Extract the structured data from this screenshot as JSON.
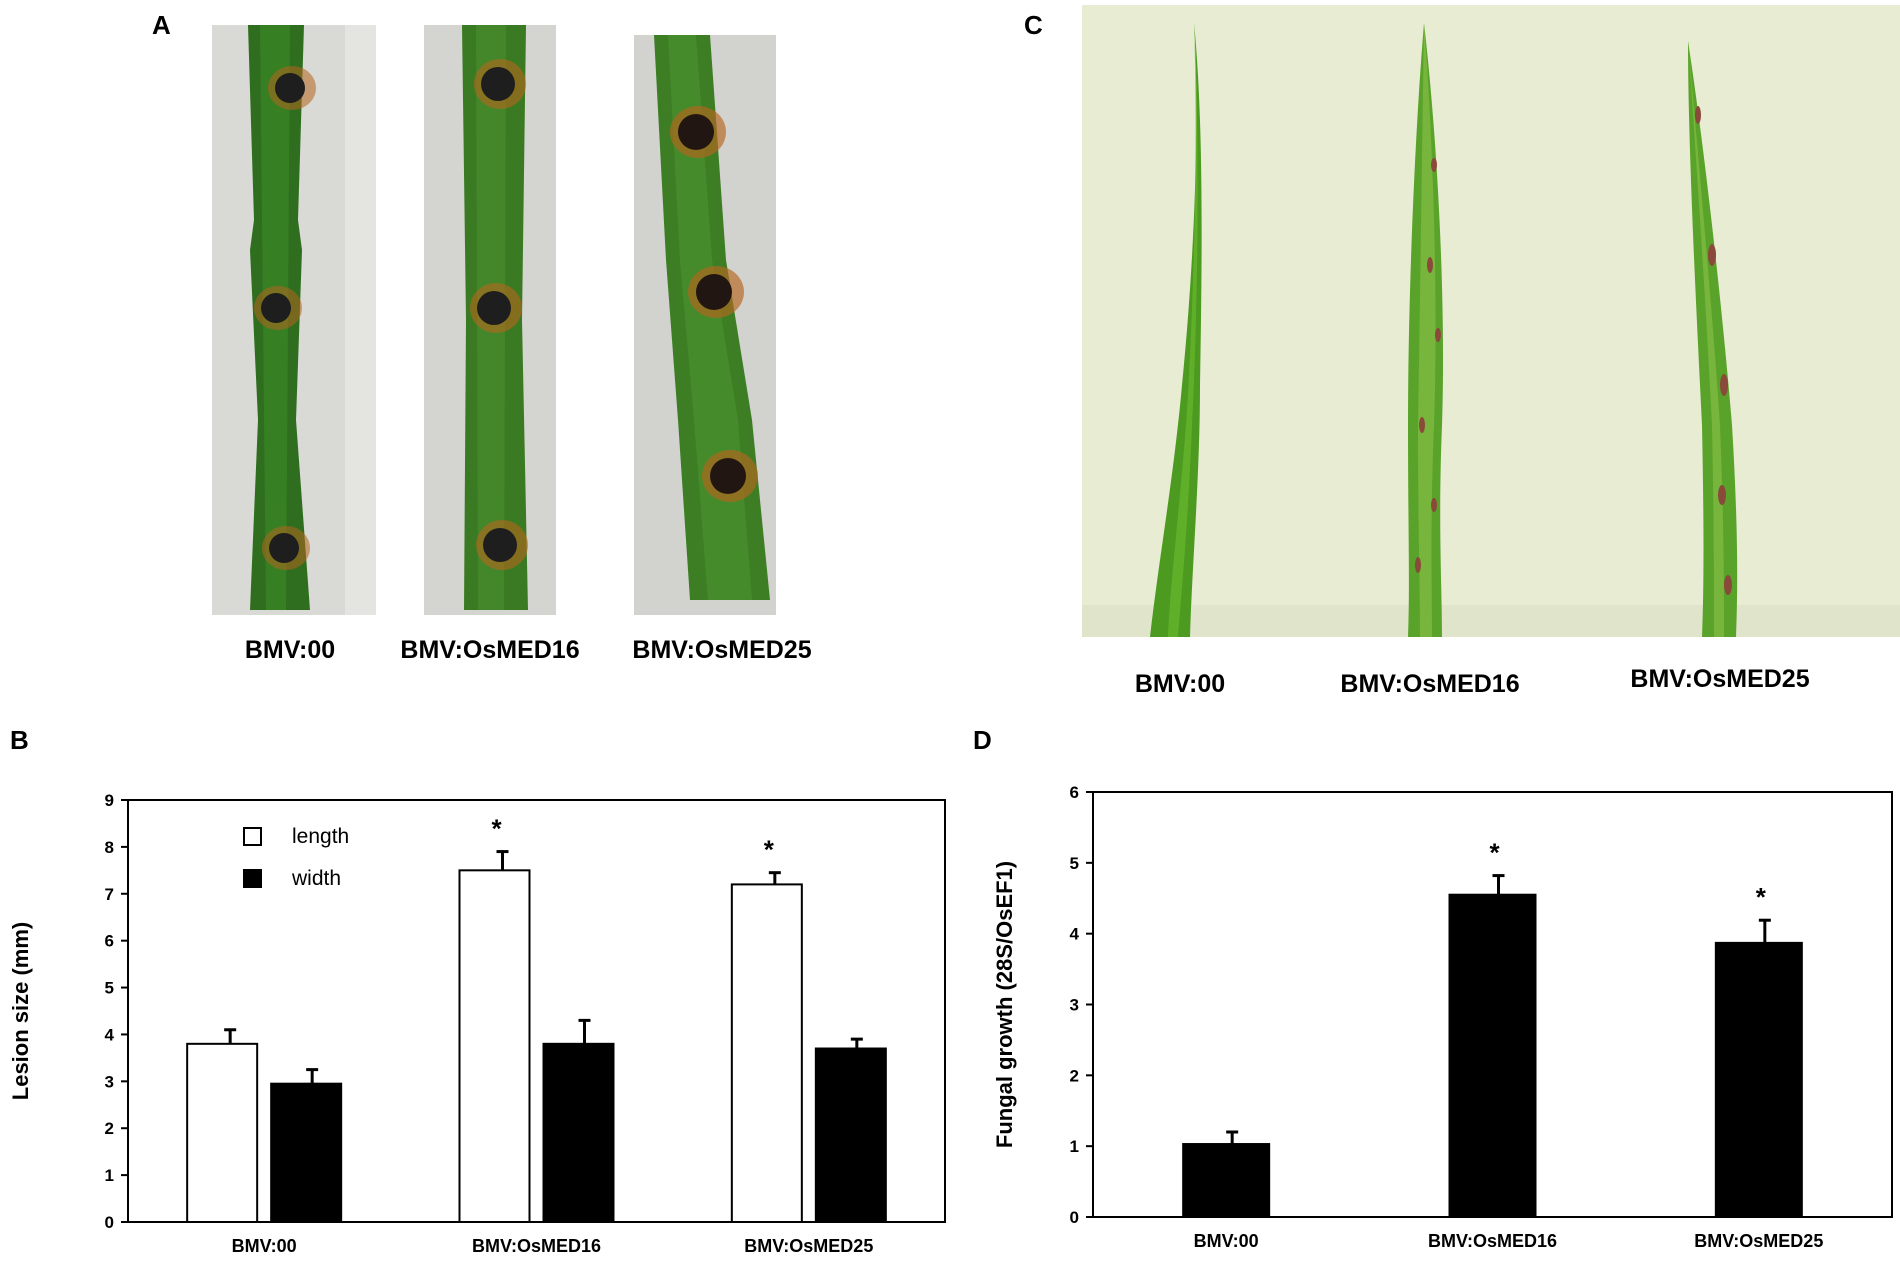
{
  "panel_labels": {
    "a": "A",
    "b": "B",
    "c": "C",
    "d": "D"
  },
  "panel_a": {
    "captions": [
      "BMV:00",
      "BMV:OsMED16",
      "BMV:OsMED25"
    ]
  },
  "panel_c": {
    "captions": [
      "BMV:00",
      "BMV:OsMED16",
      "BMV:OsMED25"
    ]
  },
  "colors": {
    "leaf_green": "#2f8a1f",
    "leaf_green_light": "#5fb02f",
    "lesion_dark": "#2a1a14",
    "lesion_halo": "#b5651d",
    "background_a": "#d8d8d4",
    "background_c": "#e6ecd2",
    "bar_black": "#000000",
    "bar_white": "#ffffff"
  },
  "chart_data": [
    {
      "type": "bar",
      "panel": "B",
      "categories": [
        "BMV:00",
        "BMV:OsMED16",
        "BMV:OsMED25"
      ],
      "series": [
        {
          "name": "length",
          "values": [
            3.8,
            7.5,
            7.2
          ],
          "errors": [
            0.3,
            0.4,
            0.25
          ],
          "fill": "#ffffff"
        },
        {
          "name": "width",
          "values": [
            2.95,
            3.8,
            3.7
          ],
          "errors": [
            0.3,
            0.5,
            0.2
          ],
          "fill": "#000000"
        }
      ],
      "significance": [
        "",
        "*",
        "*"
      ],
      "ylabel": "Lesion size (mm)",
      "xlabel": "",
      "ylim": [
        0,
        9
      ],
      "yticks": [
        "0",
        "1",
        "2",
        "3",
        "4",
        "5",
        "6",
        "7",
        "8",
        "9"
      ],
      "legend_position": "top-left"
    },
    {
      "type": "bar",
      "panel": "D",
      "categories": [
        "BMV:00",
        "BMV:OsMED16",
        "BMV:OsMED25"
      ],
      "series": [
        {
          "values": [
            1.03,
            4.55,
            3.87
          ],
          "errors": [
            0.17,
            0.27,
            0.32
          ],
          "fill": "#000000"
        }
      ],
      "significance": [
        "",
        "*",
        "*"
      ],
      "ylabel": "Fungal growth (28S/OsEF1)",
      "xlabel": "",
      "ylim": [
        0,
        6
      ],
      "yticks": [
        "0",
        "1",
        "2",
        "3",
        "4",
        "5",
        "6"
      ]
    }
  ]
}
